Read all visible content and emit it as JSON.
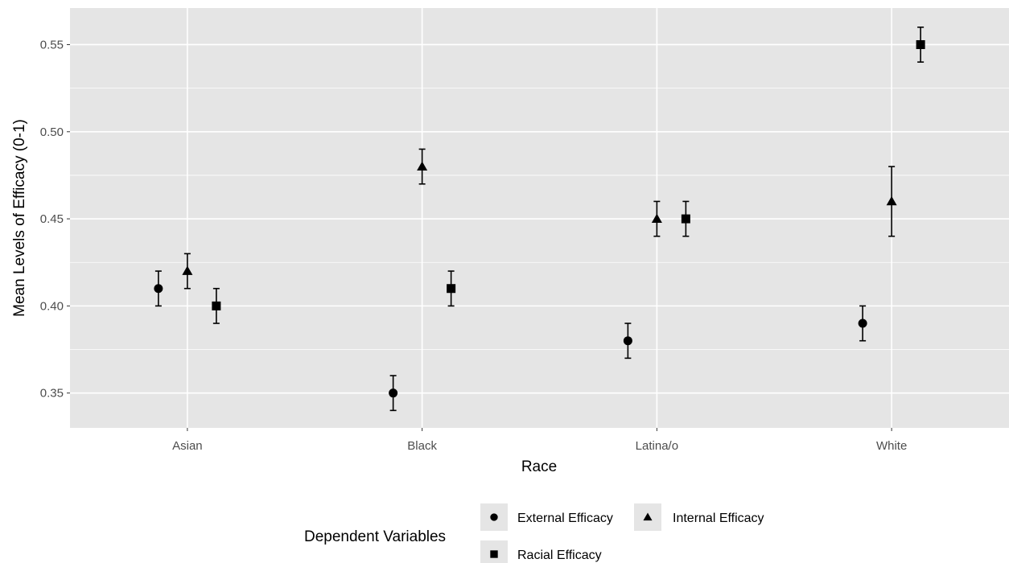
{
  "chart_data": {
    "type": "scatter",
    "title": "",
    "xlabel": "Race",
    "ylabel": "Mean Levels of Efficacy (0-1)",
    "categories": [
      "Asian",
      "Black",
      "Latina/o",
      "White"
    ],
    "ylim": [
      0.33,
      0.571
    ],
    "y_ticks": [
      "0.35",
      "0.40",
      "0.45",
      "0.50",
      "0.55"
    ],
    "grid": true,
    "legend": {
      "title": "Dependent Variables",
      "placement": "bottom"
    },
    "series": [
      {
        "name": "External Efficacy",
        "shape": "circle",
        "values": [
          0.41,
          0.35,
          0.38,
          0.39
        ],
        "lower": [
          0.4,
          0.34,
          0.37,
          0.38
        ],
        "upper": [
          0.42,
          0.36,
          0.39,
          0.4
        ]
      },
      {
        "name": "Internal Efficacy",
        "shape": "triangle",
        "values": [
          0.42,
          0.48,
          0.45,
          0.46
        ],
        "lower": [
          0.41,
          0.47,
          0.44,
          0.44
        ],
        "upper": [
          0.43,
          0.49,
          0.46,
          0.48
        ]
      },
      {
        "name": "Racial Efficacy",
        "shape": "square",
        "values": [
          0.4,
          0.41,
          0.45,
          0.55
        ],
        "lower": [
          0.39,
          0.4,
          0.44,
          0.54
        ],
        "upper": [
          0.41,
          0.42,
          0.46,
          0.56
        ]
      }
    ],
    "colors": {
      "panel": "#e5e5e5",
      "grid": "#ffffff",
      "marker": "#000000",
      "tick_text": "#4d4d4d"
    }
  }
}
